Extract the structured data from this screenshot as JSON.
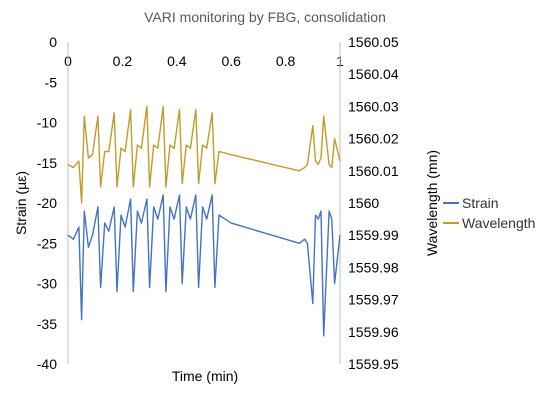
{
  "chart_data": {
    "type": "line",
    "title": "VARI monitoring by FBG, consolidation",
    "xlabel": "Time (min)",
    "ylabel_left": "Strain (µε)",
    "ylabel_right": "Wavelength (mn)",
    "xlim": [
      0,
      1
    ],
    "ylim_left": [
      -40,
      0
    ],
    "ylim_right": [
      1559.95,
      1560.05
    ],
    "x_ticks": [
      0,
      0.2,
      0.4,
      0.6,
      0.8,
      1
    ],
    "x_tick_labels": [
      "0",
      "0.2",
      "0.4",
      "0.6",
      "0.8",
      "1"
    ],
    "y_left_ticks": [
      0,
      -5,
      -10,
      -15,
      -20,
      -25,
      -30,
      -35,
      -40
    ],
    "y_left_tick_labels": [
      "0",
      "-5",
      "-10",
      "-15",
      "-20",
      "-25",
      "-30",
      "-35",
      "-40"
    ],
    "y_right_ticks": [
      1560.05,
      1560.04,
      1560.03,
      1560.02,
      1560.01,
      1560,
      1559.99,
      1559.98,
      1559.97,
      1559.96,
      1559.95
    ],
    "y_right_tick_labels": [
      "1560.05",
      "1560.04",
      "1560.03",
      "1560.02",
      "1560.01",
      "1560",
      "1559.99",
      "1559.98",
      "1559.97",
      "1559.96",
      "1559.95"
    ],
    "grid": false,
    "legend_position": "right",
    "series": [
      {
        "name": "Strain",
        "axis": "left",
        "color": "#4472C4",
        "x": [
          0.0,
          0.02,
          0.04,
          0.05,
          0.06,
          0.075,
          0.09,
          0.11,
          0.12,
          0.135,
          0.15,
          0.17,
          0.18,
          0.195,
          0.21,
          0.23,
          0.24,
          0.255,
          0.27,
          0.29,
          0.3,
          0.315,
          0.33,
          0.35,
          0.36,
          0.375,
          0.39,
          0.41,
          0.42,
          0.435,
          0.45,
          0.47,
          0.48,
          0.495,
          0.51,
          0.53,
          0.54,
          0.555,
          0.6,
          0.65,
          0.7,
          0.75,
          0.8,
          0.85,
          0.87,
          0.88,
          0.9,
          0.91,
          0.92,
          0.93,
          0.94,
          0.96,
          0.97,
          0.98,
          1.0
        ],
        "y": [
          -24,
          -24.5,
          -23,
          -34.5,
          -21,
          -25.5,
          -24,
          -20.5,
          -30.5,
          -22.5,
          -23.5,
          -20.5,
          -31,
          -21.5,
          -23,
          -19.5,
          -31,
          -21,
          -22.5,
          -19.5,
          -30.5,
          -20.5,
          -22,
          -19,
          -31,
          -20.5,
          -22,
          -19,
          -30,
          -20.5,
          -22,
          -19,
          -30.5,
          -20.5,
          -22,
          -19,
          -30.5,
          -21.5,
          -22.5,
          -23,
          -23.5,
          -24,
          -24.5,
          -25,
          -24.5,
          -25,
          -32.5,
          -21.5,
          -22,
          -21,
          -36.5,
          -21,
          -22,
          -30,
          -24
        ]
      },
      {
        "name": "Wavelength",
        "axis": "right",
        "color": "#C59A2C",
        "x": [
          0.0,
          0.02,
          0.04,
          0.05,
          0.06,
          0.075,
          0.09,
          0.11,
          0.12,
          0.135,
          0.15,
          0.17,
          0.18,
          0.195,
          0.21,
          0.23,
          0.24,
          0.255,
          0.27,
          0.29,
          0.3,
          0.315,
          0.33,
          0.35,
          0.36,
          0.375,
          0.39,
          0.41,
          0.42,
          0.435,
          0.45,
          0.47,
          0.48,
          0.495,
          0.51,
          0.53,
          0.54,
          0.555,
          0.6,
          0.65,
          0.7,
          0.75,
          0.8,
          0.85,
          0.87,
          0.88,
          0.9,
          0.91,
          0.92,
          0.93,
          0.94,
          0.96,
          0.97,
          0.98,
          1.0
        ],
        "y": [
          1560.012,
          1560.011,
          1560.013,
          1560.0,
          1560.027,
          1560.014,
          1560.015,
          1560.027,
          1560.005,
          1560.016,
          1560.016,
          1560.028,
          1560.005,
          1560.017,
          1560.016,
          1560.029,
          1560.005,
          1560.018,
          1560.017,
          1560.03,
          1560.005,
          1560.018,
          1560.017,
          1560.03,
          1560.005,
          1560.018,
          1560.017,
          1560.029,
          1560.006,
          1560.018,
          1560.017,
          1560.029,
          1560.006,
          1560.018,
          1560.017,
          1560.028,
          1560.006,
          1560.016,
          1560.015,
          1560.014,
          1560.013,
          1560.012,
          1560.011,
          1560.01,
          1560.011,
          1560.012,
          1560.024,
          1560.013,
          1560.012,
          1560.014,
          1560.027,
          1560.012,
          1560.011,
          1560.02,
          1560.013
        ]
      }
    ]
  }
}
